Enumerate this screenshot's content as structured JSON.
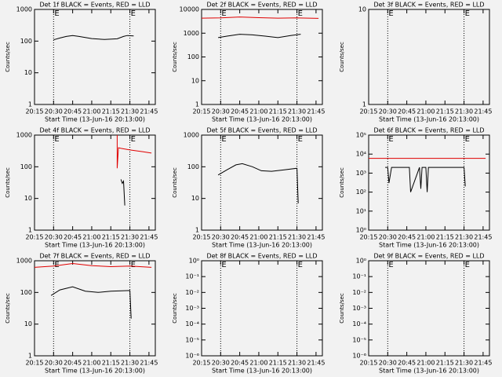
{
  "chart_data": [
    {
      "type": "line",
      "title": "Det 1f BLACK = Events, RED = LLD",
      "ylabel": "Counts/sec",
      "xlabel": "Start Time (13-Jun-16 20:13:00)",
      "xlim": [
        "20:15",
        "21:50"
      ],
      "xticks": [
        "20:15",
        "20:30",
        "20:45",
        "21:00",
        "21:15",
        "21:30",
        "21:45"
      ],
      "ylim": [
        1,
        1000
      ],
      "yticks": [
        1,
        10,
        100,
        1000
      ],
      "log_y": true,
      "markers": [
        {
          "x": "20:30",
          "label": "E"
        },
        {
          "x": "21:30",
          "label": "E"
        }
      ],
      "series": [
        {
          "name": "Events",
          "color": "#000000",
          "x": [
            "20:30",
            "20:35",
            "20:40",
            "20:45",
            "20:50",
            "21:00",
            "21:10",
            "21:20",
            "21:25",
            "21:28",
            "21:33"
          ],
          "values": [
            110,
            125,
            140,
            150,
            140,
            120,
            112,
            118,
            140,
            150,
            145
          ]
        }
      ]
    },
    {
      "type": "line",
      "title": "Det 2f BLACK = Events, RED = LLD",
      "ylabel": "Counts/sec",
      "xlabel": "Start Time (13-Jun-16 20:13:00)",
      "xlim": [
        "20:15",
        "21:50"
      ],
      "xticks": [
        "20:15",
        "20:30",
        "20:45",
        "21:00",
        "21:15",
        "21:30",
        "21:45"
      ],
      "ylim": [
        1,
        10000
      ],
      "yticks": [
        1,
        10,
        100,
        1000,
        10000
      ],
      "log_y": true,
      "markers": [
        {
          "x": "20:30",
          "label": "E"
        },
        {
          "x": "21:30",
          "label": "E"
        }
      ],
      "series": [
        {
          "name": "LLD",
          "color": "#e00000",
          "x": [
            "20:15",
            "20:30",
            "20:45",
            "21:00",
            "21:15",
            "21:30",
            "21:47"
          ],
          "values": [
            4300,
            4400,
            4800,
            4500,
            4300,
            4400,
            4200
          ]
        },
        {
          "name": "Events",
          "color": "#000000",
          "x": [
            "20:28",
            "20:35",
            "20:45",
            "20:55",
            "21:05",
            "21:15",
            "21:25",
            "21:33"
          ],
          "values": [
            650,
            750,
            900,
            850,
            750,
            650,
            800,
            900
          ]
        }
      ]
    },
    {
      "type": "line",
      "title": "Det 3f BLACK = Events, RED = LLD",
      "ylabel": "Counts/sec",
      "xlabel": "Start Time (13-Jun-16 20:13:00)",
      "xlim": [
        "20:15",
        "21:50"
      ],
      "xticks": [
        "20:15",
        "20:30",
        "20:45",
        "21:00",
        "21:15",
        "21:30",
        "21:45"
      ],
      "ylim": [
        1,
        10
      ],
      "yticks": [
        1,
        10
      ],
      "log_y": true,
      "markers": [
        {
          "x": "20:30",
          "label": "E"
        },
        {
          "x": "21:30",
          "label": "E"
        }
      ],
      "series": []
    },
    {
      "type": "line",
      "title": "Det 4f BLACK = Events, RED = LLD",
      "ylabel": "Counts/sec",
      "xlabel": "Start Time (13-Jun-16 20:13:00)",
      "xlim": [
        "20:15",
        "21:50"
      ],
      "xticks": [
        "20:15",
        "20:30",
        "20:45",
        "21:00",
        "21:15",
        "21:30",
        "21:45"
      ],
      "ylim": [
        1,
        1000
      ],
      "yticks": [
        1,
        10,
        100,
        1000
      ],
      "log_y": true,
      "markers": [
        {
          "x": "20:30",
          "label": "E"
        },
        {
          "x": "21:30",
          "label": "E"
        }
      ],
      "series": [
        {
          "name": "LLD",
          "color": "#e00000",
          "x": [
            "21:20",
            "21:20",
            "21:21",
            "21:23",
            "21:30",
            "21:40",
            "21:47"
          ],
          "values": [
            1000,
            90,
            400,
            380,
            340,
            300,
            270
          ]
        },
        {
          "name": "Events",
          "color": "#000000",
          "x": [
            "21:23",
            "21:24",
            "21:25",
            "21:26"
          ],
          "values": [
            40,
            30,
            35,
            6
          ]
        }
      ]
    },
    {
      "type": "line",
      "title": "Det 5f BLACK = Events, RED = LLD",
      "ylabel": "Counts/sec",
      "xlabel": "Start Time (13-Jun-16 20:13:00)",
      "xlim": [
        "20:15",
        "21:50"
      ],
      "xticks": [
        "20:15",
        "20:30",
        "20:45",
        "21:00",
        "21:15",
        "21:30",
        "21:45"
      ],
      "ylim": [
        1,
        1000
      ],
      "yticks": [
        1,
        10,
        100,
        1000
      ],
      "log_y": true,
      "markers": [
        {
          "x": "20:30",
          "label": "E"
        },
        {
          "x": "21:30",
          "label": "E"
        }
      ],
      "series": [
        {
          "name": "Events",
          "color": "#000000",
          "x": [
            "20:28",
            "20:35",
            "20:42",
            "20:47",
            "20:55",
            "21:02",
            "21:10",
            "21:20",
            "21:30",
            "21:31"
          ],
          "values": [
            55,
            80,
            115,
            125,
            100,
            75,
            72,
            80,
            90,
            7
          ]
        }
      ]
    },
    {
      "type": "line",
      "title": "Det 6f BLACK = Events, RED = LLD",
      "ylabel": "Counts/sec",
      "xlabel": "Start Time (13-Jun-16 20:13:00)",
      "xlim": [
        "20:15",
        "21:50"
      ],
      "xticks": [
        "20:15",
        "20:30",
        "20:45",
        "21:00",
        "21:15",
        "21:30",
        "21:45"
      ],
      "ylim": [
        1,
        100000
      ],
      "yticks": [
        {
          "value": 1,
          "label": "10⁰"
        },
        {
          "value": 10,
          "label": "10¹"
        },
        {
          "value": 100,
          "label": "10²"
        },
        {
          "value": 1000,
          "label": "10³"
        },
        {
          "value": 10000,
          "label": "10⁴"
        },
        {
          "value": 100000,
          "label": "10⁵"
        }
      ],
      "log_y": true,
      "markers": [
        {
          "x": "20:30",
          "label": "E"
        },
        {
          "x": "21:30",
          "label": "E"
        }
      ],
      "series": [
        {
          "name": "LLD",
          "color": "#e00000",
          "x": [
            "20:15",
            "20:45",
            "21:15",
            "21:47"
          ],
          "values": [
            6000,
            6000,
            6000,
            6000
          ]
        },
        {
          "name": "Events",
          "color": "#000000",
          "x": [
            "20:28",
            "20:30",
            "20:31",
            "20:33",
            "20:45",
            "20:47",
            "20:48",
            "20:55",
            "20:56",
            "20:57",
            "21:00",
            "21:01",
            "21:02",
            "21:30",
            "21:31"
          ],
          "values": [
            2000,
            2000,
            300,
            2000,
            2000,
            2000,
            100,
            2000,
            150,
            2000,
            2000,
            100,
            2000,
            2000,
            200
          ]
        }
      ]
    },
    {
      "type": "line",
      "title": "Det 7f BLACK = Events, RED = LLD",
      "ylabel": "Counts/sec",
      "xlabel": "Start Time (13-Jun-16 20:13:00)",
      "xlim": [
        "20:15",
        "21:50"
      ],
      "xticks": [
        "20:15",
        "20:30",
        "20:45",
        "21:00",
        "21:15",
        "21:30",
        "21:45"
      ],
      "ylim": [
        1,
        1000
      ],
      "yticks": [
        1,
        10,
        100,
        1000
      ],
      "log_y": true,
      "markers": [
        {
          "x": "20:30",
          "label": "E"
        },
        {
          "x": "21:30",
          "label": "E"
        }
      ],
      "series": [
        {
          "name": "LLD",
          "color": "#e00000",
          "x": [
            "20:15",
            "20:30",
            "20:45",
            "21:00",
            "21:15",
            "21:30",
            "21:47"
          ],
          "values": [
            620,
            680,
            820,
            700,
            650,
            680,
            620
          ]
        },
        {
          "name": "Events",
          "color": "#000000",
          "x": [
            "20:28",
            "20:35",
            "20:45",
            "20:55",
            "21:05",
            "21:15",
            "21:30",
            "21:31"
          ],
          "values": [
            80,
            120,
            150,
            110,
            100,
            110,
            115,
            15
          ]
        }
      ]
    },
    {
      "type": "line",
      "title": "Det 8f BLACK = Events, RED = LLD",
      "ylabel": "Counts/sec",
      "xlabel": "Start Time (13-Jun-16 20:13:00)",
      "xlim": [
        "20:15",
        "21:50"
      ],
      "xticks": [
        "20:15",
        "20:30",
        "20:45",
        "21:00",
        "21:15",
        "21:30",
        "21:45"
      ],
      "ylim": [
        1e-06,
        1
      ],
      "yticks": [
        {
          "value": 1e-06,
          "label": "10⁻⁶"
        },
        {
          "value": 1e-05,
          "label": "10⁻⁵"
        },
        {
          "value": 0.0001,
          "label": "10⁻⁴"
        },
        {
          "value": 0.001,
          "label": "10⁻³"
        },
        {
          "value": 0.01,
          "label": "10⁻²"
        },
        {
          "value": 0.1,
          "label": "10⁻¹"
        },
        {
          "value": 1,
          "label": "10⁰"
        }
      ],
      "log_y": true,
      "markers": [
        {
          "x": "20:30",
          "label": "E"
        },
        {
          "x": "21:30",
          "label": "E"
        }
      ],
      "series": []
    },
    {
      "type": "line",
      "title": "Det 9f BLACK = Events, RED = LLD",
      "ylabel": "Counts/sec",
      "xlabel": "Start Time (13-Jun-16 20:13:00)",
      "xlim": [
        "20:15",
        "21:50"
      ],
      "xticks": [
        "20:15",
        "20:30",
        "20:45",
        "21:00",
        "21:15",
        "21:30",
        "21:45"
      ],
      "ylim": [
        1e-06,
        1
      ],
      "yticks": [
        {
          "value": 1e-06,
          "label": "10⁻⁶"
        },
        {
          "value": 1e-05,
          "label": "10⁻⁵"
        },
        {
          "value": 0.0001,
          "label": "10⁻⁴"
        },
        {
          "value": 0.001,
          "label": "10⁻³"
        },
        {
          "value": 0.01,
          "label": "10⁻²"
        },
        {
          "value": 0.1,
          "label": "10⁻¹"
        },
        {
          "value": 1,
          "label": "10⁰"
        }
      ],
      "log_y": true,
      "markers": [
        {
          "x": "20:30",
          "label": "E"
        },
        {
          "x": "21:30",
          "label": "E"
        }
      ],
      "series": []
    }
  ]
}
